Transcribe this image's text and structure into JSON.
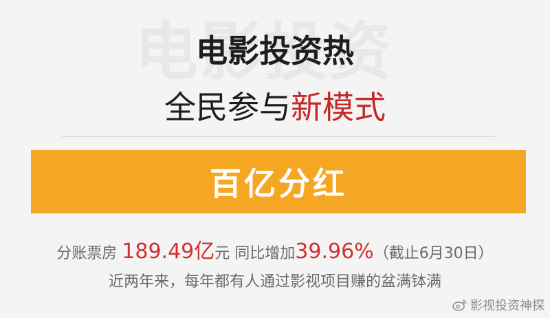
{
  "background_text": "电影投资",
  "title": "电影投资热",
  "subtitle": {
    "prefix": "全民参与",
    "highlight": "新模式"
  },
  "banner": {
    "text": "百亿分红"
  },
  "stats_line": {
    "label1": "分账票房 ",
    "value1": "189.49亿",
    "unit1": "元 ",
    "label2": "同比增加",
    "value2": "39.96%",
    "note": "（截止6月30日）"
  },
  "tagline": "近两年来，每年都有人通过影视项目赚的盆满钵满",
  "watermark": {
    "text": "影视投资神探",
    "icon": "weibo-icon"
  },
  "colors": {
    "background": "#f4f4f4",
    "banner": "#f5a623",
    "highlight": "#c62828",
    "stat_value": "#d03030",
    "body_text": "#6b6b6b",
    "title_text": "#1d1d1d"
  }
}
